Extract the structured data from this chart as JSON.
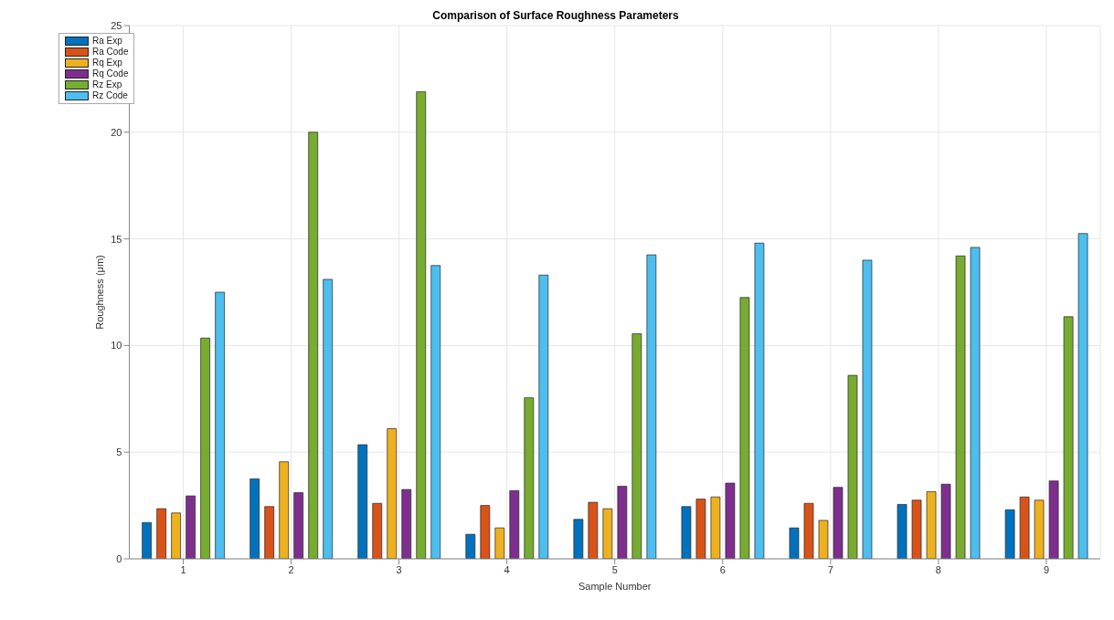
{
  "chart_data": {
    "type": "bar",
    "title": "Comparison of Surface Roughness Parameters",
    "xlabel": "Sample Number",
    "ylabel": "Roughness (μm)",
    "categories": [
      "1",
      "2",
      "3",
      "4",
      "5",
      "6",
      "7",
      "8",
      "9"
    ],
    "series": [
      {
        "name": "Ra Exp",
        "color": "#0072bd",
        "values": [
          1.7,
          3.75,
          5.35,
          1.15,
          1.85,
          2.45,
          1.45,
          2.55,
          2.3
        ]
      },
      {
        "name": "Ra Code",
        "color": "#d95319",
        "values": [
          2.35,
          2.45,
          2.6,
          2.5,
          2.65,
          2.8,
          2.6,
          2.75,
          2.9
        ]
      },
      {
        "name": "Rq Exp",
        "color": "#edb120",
        "values": [
          2.15,
          4.55,
          6.1,
          1.45,
          2.35,
          2.9,
          1.8,
          3.15,
          2.75
        ]
      },
      {
        "name": "Rq Code",
        "color": "#7e2f8e",
        "values": [
          2.95,
          3.1,
          3.25,
          3.2,
          3.4,
          3.55,
          3.35,
          3.5,
          3.65
        ]
      },
      {
        "name": "Rz Exp",
        "color": "#77ac30",
        "values": [
          10.35,
          20.0,
          21.9,
          7.55,
          10.55,
          12.25,
          8.6,
          14.2,
          11.35
        ]
      },
      {
        "name": "Rz Code",
        "color": "#4dbeee",
        "values": [
          12.5,
          13.1,
          13.75,
          13.3,
          14.25,
          14.8,
          14.0,
          14.6,
          15.25
        ]
      }
    ],
    "ylim": [
      0,
      25
    ],
    "yticks": [
      0,
      5,
      10,
      15,
      20,
      25
    ],
    "grid": true,
    "legend": "top left"
  }
}
